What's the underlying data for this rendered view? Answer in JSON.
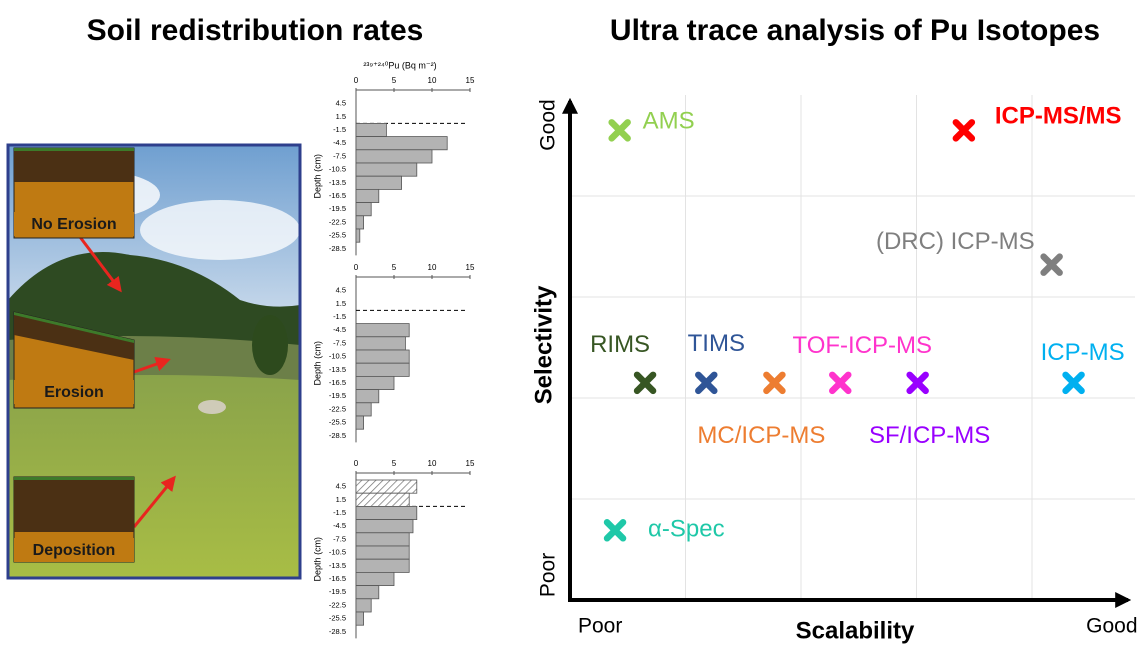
{
  "chart_data": [
    {
      "type": "bar",
      "orientation": "horizontal",
      "title": "Soil redistribution rates",
      "xlabel": "²³⁹⁺²⁴⁰Pu (Bq m⁻²)",
      "ylabel": "Depth (cm)",
      "categories": [
        "4.5",
        "1.5",
        "-1.5",
        "-4.5",
        "-7.5",
        "-10.5",
        "-13.5",
        "-16.5",
        "-19.5",
        "-22.5",
        "-25.5",
        "-28.5"
      ],
      "xlim": [
        0,
        15
      ],
      "xticks": [
        0,
        5,
        10,
        15
      ],
      "color": "#b3b3b3",
      "panels": [
        {
          "label": "No Erosion",
          "values": [
            0,
            0,
            4,
            12,
            10,
            8,
            6,
            3,
            2,
            1,
            0.5,
            0
          ]
        },
        {
          "label": "Erosion",
          "values": [
            0,
            0,
            0,
            7,
            6.5,
            7,
            7,
            5,
            3,
            2,
            1,
            0
          ]
        },
        {
          "label": "Deposition",
          "values": [
            8,
            7,
            8,
            7.5,
            7,
            7,
            7,
            5,
            3,
            2,
            1,
            0
          ],
          "hatched_rows": [
            0,
            1
          ]
        }
      ]
    },
    {
      "type": "scatter",
      "title": "Ultra trace analysis of Pu Isotopes",
      "xlabel": "Scalability",
      "ylabel": "Selectivity",
      "xlim": [
        0,
        5
      ],
      "ylim": [
        0,
        5
      ],
      "xticks": [
        {
          "value": 0,
          "label": "Poor"
        },
        {
          "value": 5,
          "label": "Good"
        }
      ],
      "yticks": [
        {
          "value": 0,
          "label": "Poor"
        },
        {
          "value": 5,
          "label": "Good"
        }
      ],
      "xgrid": [
        1,
        2,
        3,
        4
      ],
      "ygrid": [
        1,
        2,
        3,
        4
      ],
      "points": [
        {
          "name": "AMS",
          "color": "#92d050",
          "x": 0.43,
          "y": 4.65
        },
        {
          "name": "ICP-MS/MS",
          "color": "#ff0000",
          "x": 3.41,
          "y": 4.65
        },
        {
          "name": "(DRC) ICP-MS",
          "color": "#7f7f7f",
          "x": 4.17,
          "y": 3.32
        },
        {
          "name": "RIMS",
          "color": "#375623",
          "x": 0.65,
          "y": 2.15
        },
        {
          "name": "TIMS",
          "color": "#2f5597",
          "x": 1.18,
          "y": 2.15
        },
        {
          "name": "MC/ICP-MS",
          "color": "#ed7d31",
          "x": 1.77,
          "y": 2.15
        },
        {
          "name": "TOF-ICP-MS",
          "color": "#ff33cc",
          "x": 2.34,
          "y": 2.15
        },
        {
          "name": "SF/ICP-MS",
          "color": "#9900ff",
          "x": 3.01,
          "y": 2.15
        },
        {
          "name": "ICP-MS",
          "color": "#00b0f0",
          "x": 4.36,
          "y": 2.15
        },
        {
          "name": "α-Spec",
          "color": "#1fc8a8",
          "x": 0.39,
          "y": 0.69
        }
      ]
    }
  ]
}
